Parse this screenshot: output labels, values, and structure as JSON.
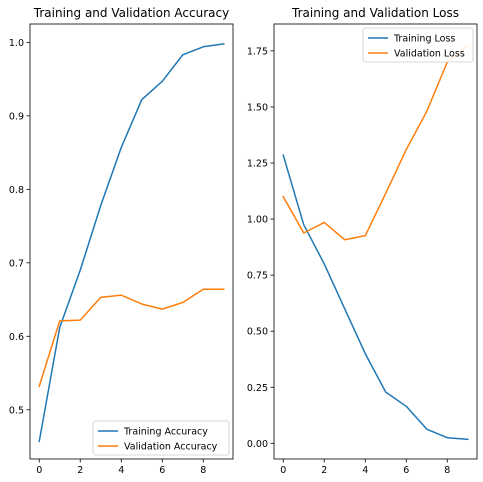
{
  "chart_data": [
    {
      "type": "line",
      "title": "Training and Validation Accuracy",
      "xlabel": "",
      "ylabel": "",
      "xlim": [
        -0.45,
        9.45
      ],
      "ylim": [
        0.433,
        1.025
      ],
      "x": [
        0,
        1,
        2,
        3,
        4,
        5,
        6,
        7,
        8,
        9
      ],
      "x_ticks": [
        0,
        2,
        4,
        6,
        8
      ],
      "x_tick_labels": [
        "0",
        "2",
        "4",
        "6",
        "8"
      ],
      "y_ticks": [
        0.5,
        0.6,
        0.7,
        0.8,
        0.9,
        1.0
      ],
      "y_tick_labels": [
        "0.5",
        "0.6",
        "0.7",
        "0.8",
        "0.9",
        "1.0"
      ],
      "grid": false,
      "legend_position": "lower-right",
      "series": [
        {
          "name": "Training Accuracy",
          "color": "#1f77b4",
          "values": [
            0.457,
            0.612,
            0.69,
            0.778,
            0.857,
            0.922,
            0.947,
            0.983,
            0.994,
            0.998
          ]
        },
        {
          "name": "Validation Accuracy",
          "color": "#ff7f0e",
          "values": [
            0.532,
            0.621,
            0.622,
            0.653,
            0.656,
            0.644,
            0.637,
            0.646,
            0.664,
            0.664
          ]
        }
      ]
    },
    {
      "type": "line",
      "title": "Training and Validation Loss",
      "xlabel": "",
      "ylabel": "",
      "xlim": [
        -0.45,
        9.45
      ],
      "ylim": [
        -0.07,
        1.87
      ],
      "x": [
        0,
        1,
        2,
        3,
        4,
        5,
        6,
        7,
        8,
        9
      ],
      "x_ticks": [
        0,
        2,
        4,
        6,
        8
      ],
      "x_tick_labels": [
        "0",
        "2",
        "4",
        "6",
        "8"
      ],
      "y_ticks": [
        0.0,
        0.25,
        0.5,
        0.75,
        1.0,
        1.25,
        1.5,
        1.75
      ],
      "y_tick_labels": [
        "0.00",
        "0.25",
        "0.50",
        "0.75",
        "1.00",
        "1.25",
        "1.50",
        "1.75"
      ],
      "grid": false,
      "legend_position": "upper-right",
      "series": [
        {
          "name": "Training Loss",
          "color": "#1f77b4",
          "values": [
            1.285,
            0.975,
            0.8,
            0.6,
            0.4,
            0.228,
            0.165,
            0.063,
            0.025,
            0.018
          ]
        },
        {
          "name": "Validation Loss",
          "color": "#ff7f0e",
          "values": [
            1.1,
            0.938,
            0.985,
            0.908,
            0.926,
            1.115,
            1.31,
            1.48,
            1.7,
            1.775
          ]
        }
      ]
    }
  ]
}
